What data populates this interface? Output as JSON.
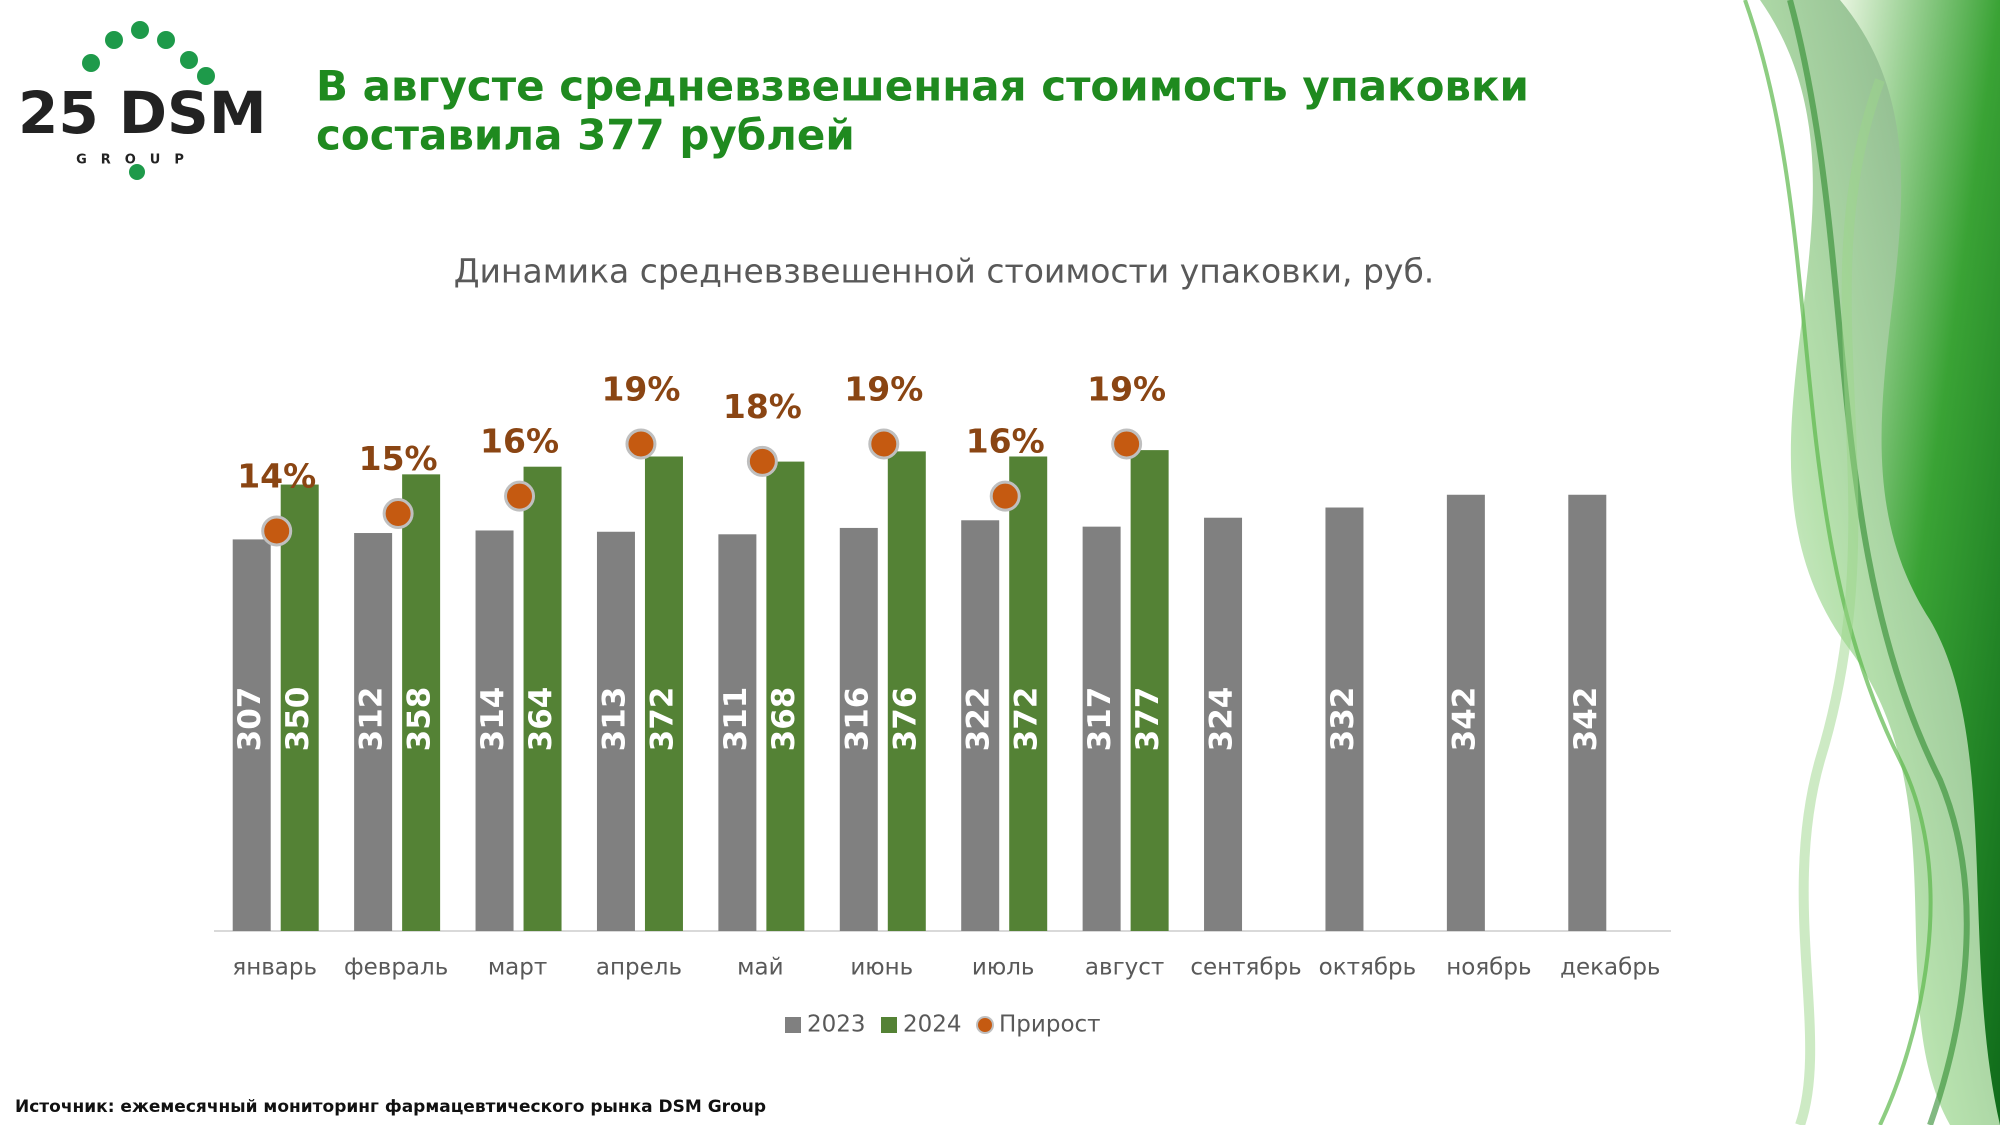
{
  "logo": {
    "text": "25 DSM",
    "subtext": "GROUP"
  },
  "header": {
    "title_line1": "В августе средневзвешенная стоимость упаковки",
    "title_line2": "составила 377 рублей"
  },
  "chart_data": {
    "type": "bar",
    "title": "Динамика средневзвешенной стоимости упаковки, руб.",
    "categories": [
      "январь",
      "февраль",
      "март",
      "апрель",
      "май",
      "июнь",
      "июль",
      "август",
      "сентябрь",
      "октябрь",
      "ноябрь",
      "декабрь"
    ],
    "series": [
      {
        "name": "2023",
        "color": "#808080",
        "values": [
          307,
          312,
          314,
          313,
          311,
          316,
          322,
          317,
          324,
          332,
          342,
          342
        ]
      },
      {
        "name": "2024",
        "color": "#548235",
        "values": [
          350,
          358,
          364,
          372,
          368,
          376,
          372,
          377,
          null,
          null,
          null,
          null
        ]
      },
      {
        "name": "Прирост",
        "type": "scatter",
        "axis": "y2",
        "color": "#c55a11",
        "values": [
          14,
          15,
          16,
          19,
          18,
          19,
          16,
          19,
          null,
          null,
          null,
          null
        ],
        "value_labels": [
          "14%",
          "15%",
          "16%",
          "19%",
          "18%",
          "19%",
          "16%",
          "19%",
          null,
          null,
          null,
          null
        ]
      }
    ],
    "ylim": [
      0,
      450
    ],
    "y2lim": [
      -9,
      24
    ],
    "legend": "bottom"
  },
  "source": "Источник: ежемесячный мониторинг фармацевтического рынка DSM Group"
}
